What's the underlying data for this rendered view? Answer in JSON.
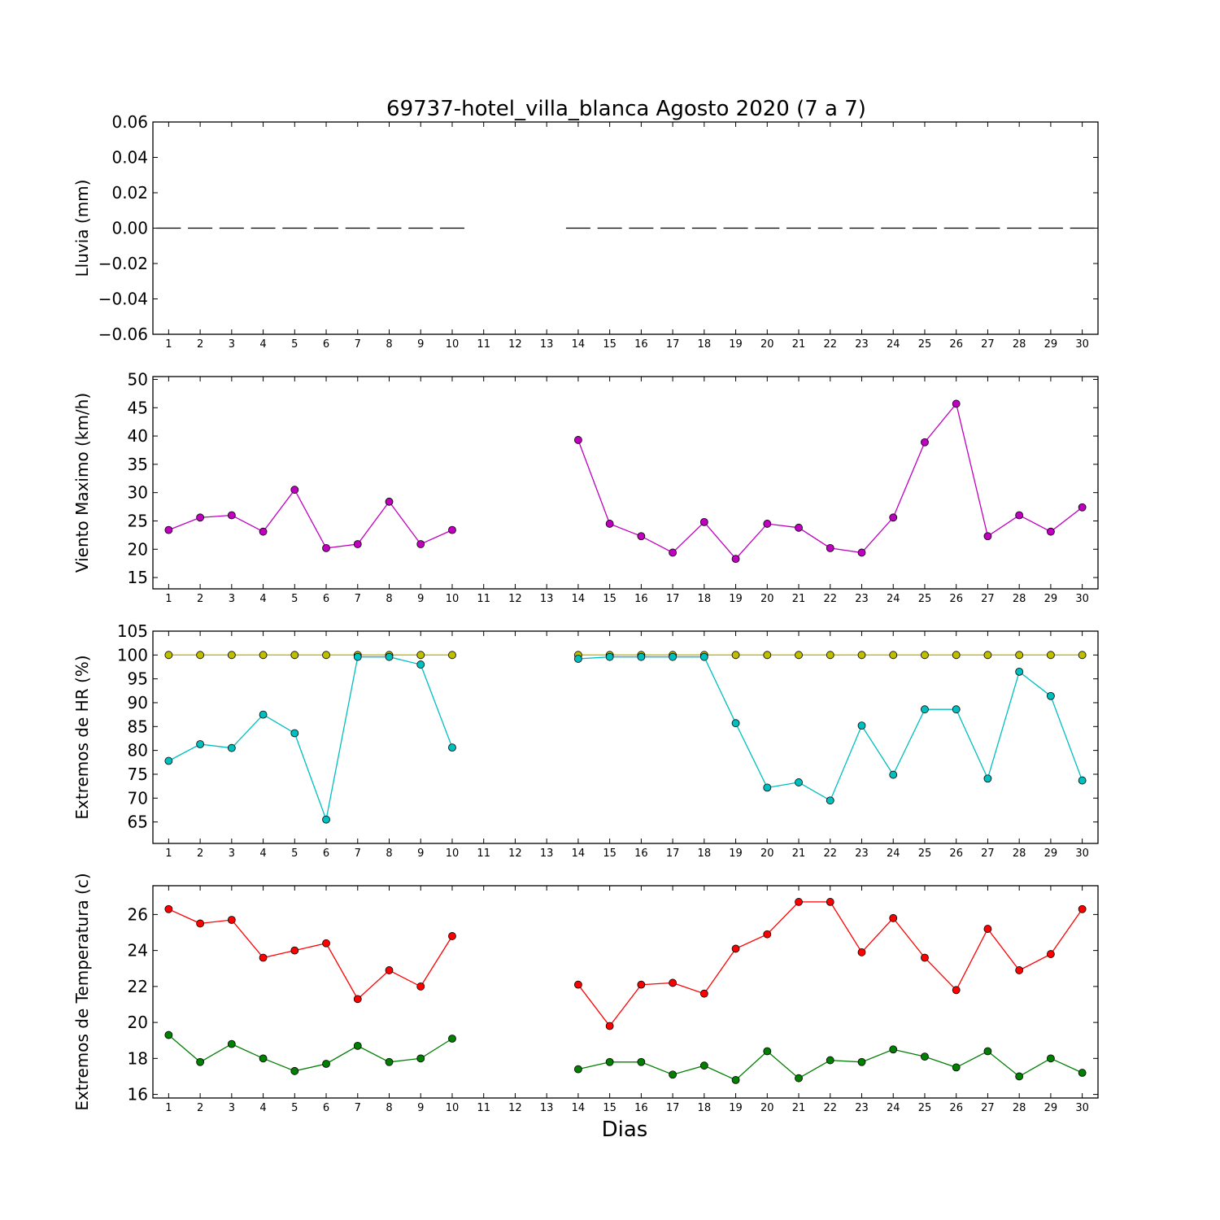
{
  "title": "69737-hotel_villa_blanca Agosto 2020  (7 a 7)",
  "xlabel": "Dias",
  "x_ticks": [
    "1",
    "2",
    "3",
    "4",
    "5",
    "6",
    "7",
    "8",
    "9",
    "10",
    "11",
    "12",
    "13",
    "14",
    "15",
    "16",
    "17",
    "18",
    "19",
    "20",
    "21",
    "22",
    "23",
    "24",
    "25",
    "26",
    "27",
    "28",
    "29",
    "30"
  ],
  "chart_data": [
    {
      "type": "line",
      "ylabel": "Lluvia (mm)",
      "ylim": [
        -0.06,
        0.06
      ],
      "yticks": [
        -0.06,
        -0.04,
        -0.02,
        0.0,
        0.02,
        0.04,
        0.06
      ],
      "ytick_labels": [
        "−0.06",
        "−0.04",
        "−0.02",
        "0.00",
        "0.02",
        "0.04",
        "0.06"
      ],
      "x": [
        1,
        2,
        3,
        4,
        5,
        6,
        7,
        8,
        9,
        10,
        11,
        12,
        13,
        14,
        15,
        16,
        17,
        18,
        19,
        20,
        21,
        22,
        23,
        24,
        25,
        26,
        27,
        28,
        29,
        30
      ],
      "series": [
        {
          "color": "#000000",
          "marker": "bar",
          "values": [
            0,
            0,
            0,
            0,
            0,
            0,
            0,
            0,
            0,
            0,
            null,
            null,
            null,
            0,
            0,
            0,
            0,
            0,
            0,
            0,
            0,
            0,
            0,
            0,
            0,
            0,
            0,
            0,
            0,
            0
          ]
        }
      ]
    },
    {
      "type": "line",
      "ylabel": "Viento Maximo (km/h)",
      "ylim": [
        13,
        50.5
      ],
      "yticks": [
        15,
        20,
        25,
        30,
        35,
        40,
        45,
        50
      ],
      "ytick_labels": [
        "15",
        "20",
        "25",
        "30",
        "35",
        "40",
        "45",
        "50"
      ],
      "x": [
        1,
        2,
        3,
        4,
        5,
        6,
        7,
        8,
        9,
        10,
        11,
        12,
        13,
        14,
        15,
        16,
        17,
        18,
        19,
        20,
        21,
        22,
        23,
        24,
        25,
        26,
        27,
        28,
        29,
        30
      ],
      "series": [
        {
          "color": "#bf00bf",
          "marker": "circle",
          "values": [
            23.4,
            25.6,
            26.0,
            23.1,
            30.5,
            20.2,
            20.9,
            28.4,
            20.9,
            23.4,
            null,
            null,
            null,
            39.3,
            24.5,
            22.3,
            19.4,
            24.8,
            18.3,
            24.5,
            23.8,
            20.2,
            19.4,
            25.6,
            38.9,
            45.7,
            22.3,
            26.0,
            23.1,
            27.4
          ]
        }
      ]
    },
    {
      "type": "line",
      "ylabel": "Extremos de HR (%)",
      "ylim": [
        60.5,
        105
      ],
      "yticks": [
        65,
        70,
        75,
        80,
        85,
        90,
        95,
        100,
        105
      ],
      "ytick_labels": [
        "65",
        "70",
        "75",
        "80",
        "85",
        "90",
        "95",
        "100",
        "105"
      ],
      "x": [
        1,
        2,
        3,
        4,
        5,
        6,
        7,
        8,
        9,
        10,
        11,
        12,
        13,
        14,
        15,
        16,
        17,
        18,
        19,
        20,
        21,
        22,
        23,
        24,
        25,
        26,
        27,
        28,
        29,
        30
      ],
      "series": [
        {
          "color": "#bfbf00",
          "marker": "circle",
          "values": [
            100,
            100,
            100,
            100,
            100,
            100,
            100,
            100,
            100,
            100,
            null,
            null,
            null,
            100,
            100,
            100,
            100,
            100,
            100,
            100,
            100,
            100,
            100,
            100,
            100,
            100,
            100,
            100,
            100,
            100
          ]
        },
        {
          "color": "#00bfbf",
          "marker": "circle",
          "values": [
            77.8,
            81.3,
            80.5,
            87.5,
            83.6,
            65.5,
            99.6,
            99.6,
            98.0,
            80.6,
            null,
            null,
            null,
            99.2,
            99.6,
            99.6,
            99.6,
            99.6,
            85.7,
            72.2,
            73.3,
            69.5,
            85.2,
            74.9,
            88.6,
            88.6,
            74.1,
            96.5,
            91.4,
            73.7
          ]
        }
      ]
    },
    {
      "type": "line",
      "ylabel": "Extremos de Temperatura (c)",
      "ylim": [
        15.8,
        27.6
      ],
      "yticks": [
        16,
        18,
        20,
        22,
        24,
        26
      ],
      "ytick_labels": [
        "16",
        "18",
        "20",
        "22",
        "24",
        "26"
      ],
      "x": [
        1,
        2,
        3,
        4,
        5,
        6,
        7,
        8,
        9,
        10,
        11,
        12,
        13,
        14,
        15,
        16,
        17,
        18,
        19,
        20,
        21,
        22,
        23,
        24,
        25,
        26,
        27,
        28,
        29,
        30
      ],
      "series": [
        {
          "color": "#ff0000",
          "marker": "circle",
          "values": [
            26.3,
            25.5,
            25.7,
            23.6,
            24.0,
            24.4,
            21.3,
            22.9,
            22.0,
            24.8,
            null,
            null,
            null,
            22.1,
            19.8,
            22.1,
            22.2,
            21.6,
            24.1,
            24.9,
            26.7,
            26.7,
            23.9,
            25.8,
            23.6,
            21.8,
            25.2,
            22.9,
            23.8,
            26.3
          ]
        },
        {
          "color": "#007f00",
          "marker": "circle",
          "values": [
            19.3,
            17.8,
            18.8,
            18.0,
            17.3,
            17.7,
            18.7,
            17.8,
            18.0,
            19.1,
            null,
            null,
            null,
            17.4,
            17.8,
            17.8,
            17.1,
            17.6,
            16.8,
            18.4,
            16.9,
            17.9,
            17.8,
            18.5,
            18.1,
            17.5,
            18.4,
            17.0,
            18.0,
            17.2
          ]
        }
      ]
    }
  ]
}
